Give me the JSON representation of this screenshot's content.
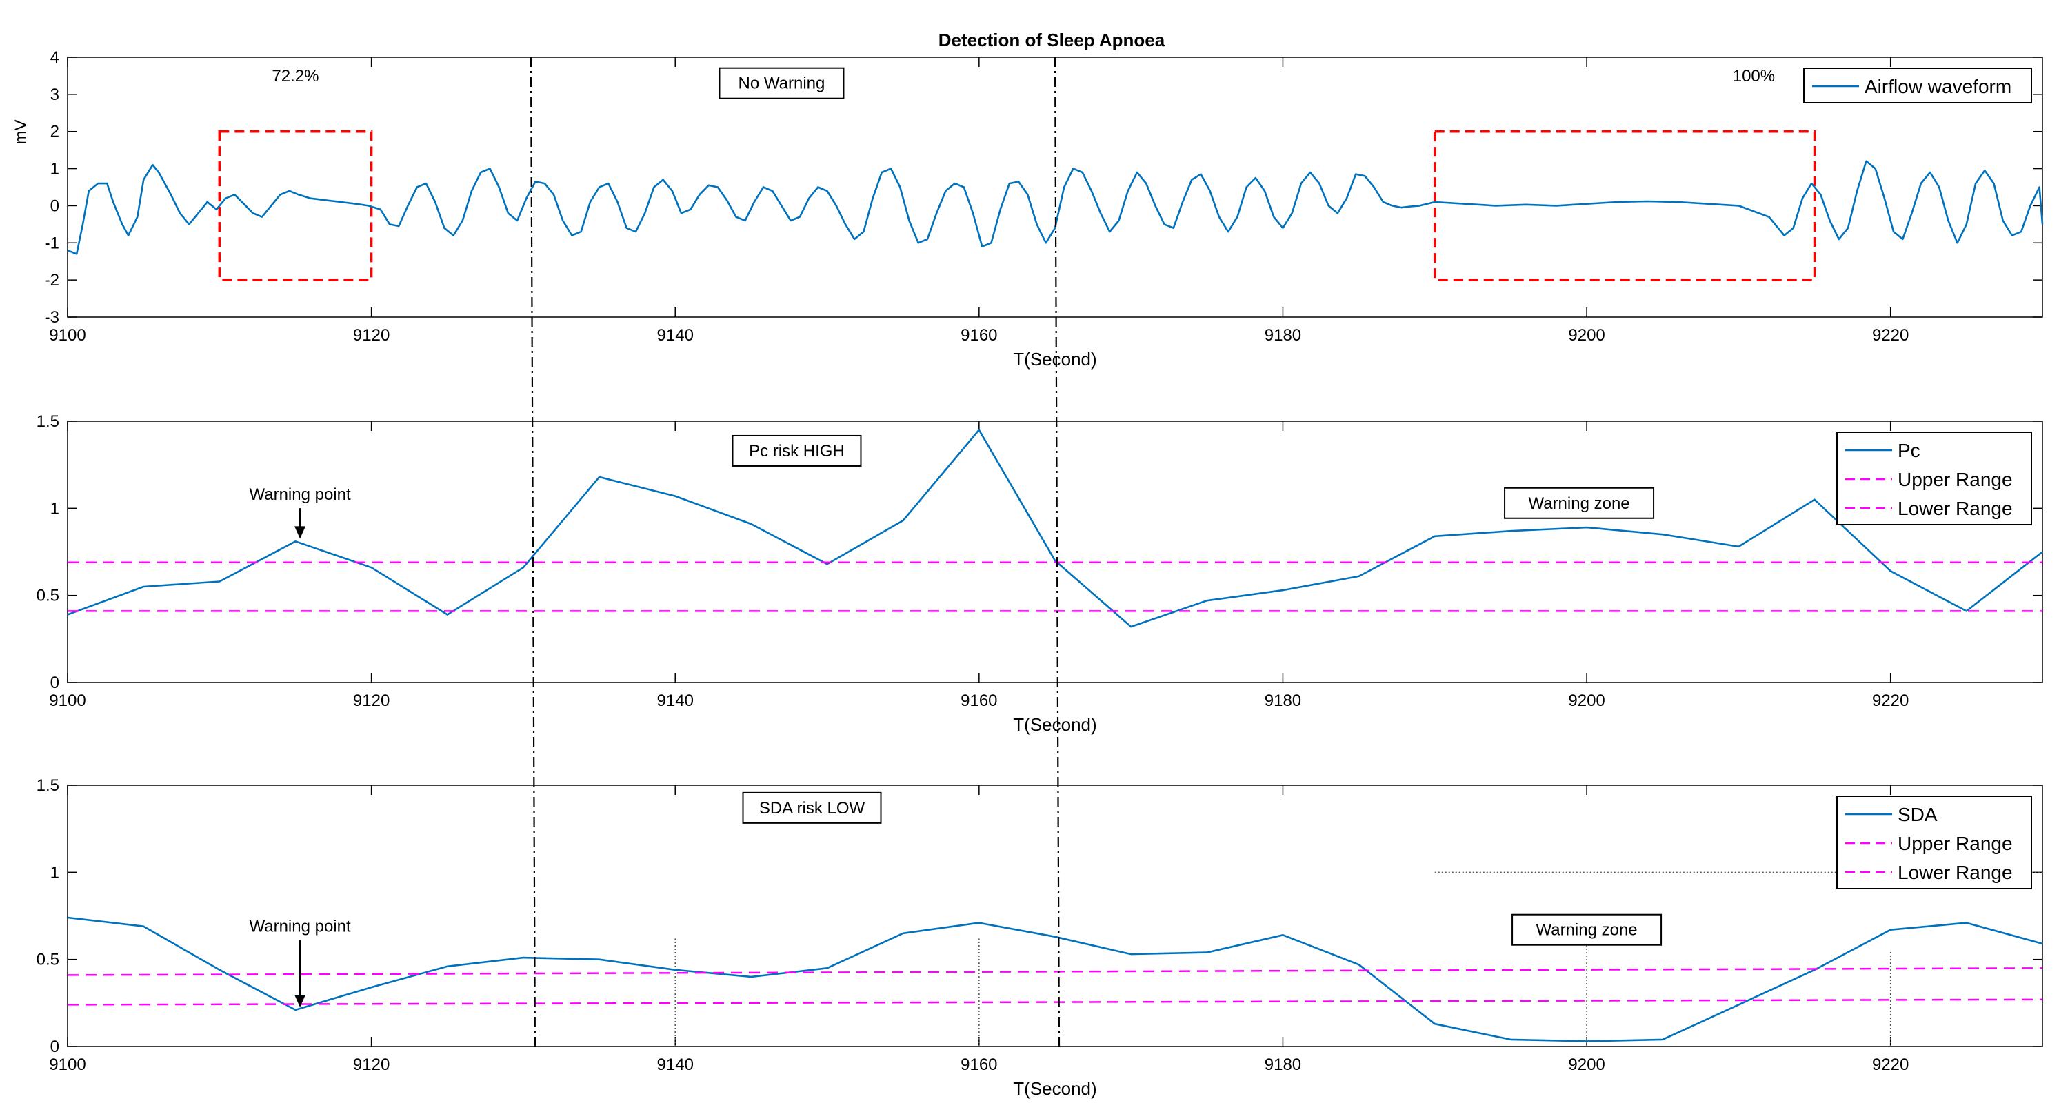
{
  "title": "Detection of Sleep Apnoea",
  "colors": {
    "signal": "#0072BD",
    "range": "#FF00FF",
    "box": "#FF0000",
    "axis": "#000000",
    "marker": "#000000"
  },
  "chart_data": [
    {
      "type": "line",
      "id": "airflow",
      "title": "Detection of Sleep Apnoea",
      "xlabel": "T(Second)",
      "ylabel": "mV",
      "xlim": [
        9100,
        9230
      ],
      "ylim": [
        -3,
        4
      ],
      "xticks": [
        9100,
        9120,
        9140,
        9160,
        9180,
        9200,
        9220
      ],
      "yticks": [
        -3,
        -2,
        -1,
        0,
        1,
        2,
        3,
        4
      ],
      "grid": false,
      "legend": {
        "position": "top-right",
        "entries": [
          "Airflow waveform"
        ]
      },
      "series": [
        {
          "name": "Airflow waveform",
          "x": [
            9100,
            9100.6,
            9101,
            9101.4,
            9102,
            9102.6,
            9103,
            9103.6,
            9104,
            9104.6,
            9105,
            9105.6,
            9106,
            9106.8,
            9107.4,
            9108,
            9108.6,
            9109.2,
            9109.8,
            9110.4,
            9111,
            9111.6,
            9112.2,
            9112.8,
            9113.4,
            9114,
            9114.6,
            9115.2,
            9116,
            9117,
            9118,
            9119,
            9119.8,
            9120.6,
            9121.2,
            9121.8,
            9122.4,
            9123,
            9123.6,
            9124.2,
            9124.8,
            9125.4,
            9126,
            9126.6,
            9127.2,
            9127.8,
            9128.4,
            9129,
            9129.6,
            9130.2,
            9130.8,
            9131.4,
            9132,
            9132.6,
            9133.2,
            9133.8,
            9134.4,
            9135,
            9135.6,
            9136.2,
            9136.8,
            9137.4,
            9138,
            9138.6,
            9139.2,
            9139.8,
            9140.4,
            9141,
            9141.6,
            9142.2,
            9142.8,
            9143.4,
            9144,
            9144.6,
            9145.2,
            9145.8,
            9146.4,
            9147,
            9147.6,
            9148.2,
            9148.8,
            9149.4,
            9150,
            9150.6,
            9151.2,
            9151.8,
            9152.4,
            9153,
            9153.6,
            9154.2,
            9154.8,
            9155.4,
            9156,
            9156.6,
            9157.2,
            9157.8,
            9158.4,
            9159,
            9159.6,
            9160.2,
            9160.8,
            9161.4,
            9162,
            9162.6,
            9163.2,
            9163.8,
            9164.4,
            9165,
            9165.6,
            9166.2,
            9166.8,
            9167.4,
            9168,
            9168.6,
            9169.2,
            9169.8,
            9170.4,
            9171,
            9171.6,
            9172.2,
            9172.8,
            9173.4,
            9174,
            9174.6,
            9175.2,
            9175.8,
            9176.4,
            9177,
            9177.6,
            9178.2,
            9178.8,
            9179.4,
            9180,
            9180.6,
            9181.2,
            9181.8,
            9182.4,
            9183,
            9183.6,
            9184.2,
            9184.8,
            9185.4,
            9186,
            9186.6,
            9187.2,
            9187.8,
            9188.4,
            9189,
            9190,
            9192,
            9194,
            9196,
            9198,
            9200,
            9202,
            9204,
            9206,
            9208,
            9210,
            9212,
            9213,
            9213.6,
            9214.2,
            9214.8,
            9215.4,
            9216,
            9216.6,
            9217.2,
            9217.8,
            9218.4,
            9219,
            9219.6,
            9220.2,
            9220.8,
            9221.4,
            9222,
            9222.6,
            9223.2,
            9223.8,
            9224.4,
            9225,
            9225.6,
            9226.2,
            9226.8,
            9227.4,
            9228,
            9228.6,
            9229.2,
            9229.8,
            9230
          ],
          "y": [
            -1.2,
            -1.3,
            -0.5,
            0.4,
            0.6,
            0.6,
            0.1,
            -0.5,
            -0.8,
            -0.3,
            0.7,
            1.1,
            0.9,
            0.3,
            -0.2,
            -0.5,
            -0.2,
            0.1,
            -0.1,
            0.2,
            0.3,
            0.05,
            -0.2,
            -0.3,
            0.0,
            0.3,
            0.4,
            0.3,
            0.2,
            0.15,
            0.1,
            0.05,
            0.0,
            -0.1,
            -0.5,
            -0.55,
            0.0,
            0.5,
            0.6,
            0.1,
            -0.6,
            -0.8,
            -0.4,
            0.4,
            0.9,
            1.0,
            0.5,
            -0.2,
            -0.4,
            0.2,
            0.65,
            0.6,
            0.3,
            -0.4,
            -0.8,
            -0.7,
            0.1,
            0.5,
            0.6,
            0.1,
            -0.6,
            -0.7,
            -0.2,
            0.5,
            0.7,
            0.4,
            -0.2,
            -0.1,
            0.3,
            0.55,
            0.5,
            0.15,
            -0.3,
            -0.4,
            0.1,
            0.5,
            0.4,
            0.0,
            -0.4,
            -0.3,
            0.2,
            0.5,
            0.4,
            0.0,
            -0.5,
            -0.9,
            -0.7,
            0.2,
            0.9,
            1.0,
            0.5,
            -0.4,
            -1.0,
            -0.9,
            -0.2,
            0.4,
            0.6,
            0.5,
            -0.2,
            -1.1,
            -1.0,
            -0.1,
            0.6,
            0.65,
            0.3,
            -0.5,
            -1.0,
            -0.6,
            0.5,
            1.0,
            0.9,
            0.4,
            -0.2,
            -0.7,
            -0.4,
            0.4,
            0.9,
            0.6,
            0.0,
            -0.5,
            -0.6,
            0.1,
            0.7,
            0.85,
            0.4,
            -0.3,
            -0.7,
            -0.3,
            0.5,
            0.75,
            0.4,
            -0.3,
            -0.6,
            -0.2,
            0.6,
            0.9,
            0.6,
            0.0,
            -0.2,
            0.2,
            0.85,
            0.8,
            0.5,
            0.1,
            0.0,
            -0.05,
            -0.02,
            0.0,
            0.1,
            0.05,
            0.0,
            0.03,
            0.0,
            0.05,
            0.1,
            0.12,
            0.1,
            0.05,
            0.0,
            -0.3,
            -0.8,
            -0.6,
            0.2,
            0.6,
            0.3,
            -0.4,
            -0.9,
            -0.6,
            0.4,
            1.2,
            1.0,
            0.2,
            -0.7,
            -0.9,
            -0.2,
            0.6,
            0.9,
            0.5,
            -0.4,
            -1.0,
            -0.5,
            0.6,
            0.95,
            0.6,
            -0.4,
            -0.8,
            -0.7,
            0.0,
            0.5,
            -0.5
          ]
        }
      ],
      "annotations": [
        {
          "text": "72.2%",
          "x": 9115,
          "y": 3.5
        },
        {
          "text": "No Warning",
          "x": 9147,
          "y": 3.3,
          "boxed": true
        },
        {
          "text": "100%",
          "x": 9211,
          "y": 3.5
        }
      ],
      "highlight_boxes": [
        {
          "x0": 9110,
          "x1": 9120,
          "y0": -2,
          "y1": 2
        },
        {
          "x0": 9190,
          "x1": 9215,
          "y0": -2,
          "y1": 2
        }
      ]
    },
    {
      "type": "line",
      "id": "pc",
      "title": "",
      "xlabel": "T(Second)",
      "ylabel": "",
      "xlim": [
        9100,
        9230
      ],
      "ylim": [
        0,
        1.5
      ],
      "xticks": [
        9100,
        9120,
        9140,
        9160,
        9180,
        9200,
        9220
      ],
      "yticks": [
        0,
        0.5,
        1,
        1.5
      ],
      "grid": false,
      "legend": {
        "position": "top-right",
        "entries": [
          "Pc",
          "Upper Range",
          "Lower Range"
        ]
      },
      "series": [
        {
          "name": "Pc",
          "x": [
            9100,
            9105,
            9110,
            9115,
            9120,
            9125,
            9130,
            9135,
            9140,
            9145,
            9150,
            9155,
            9160,
            9165,
            9170,
            9175,
            9180,
            9185,
            9190,
            9195,
            9200,
            9205,
            9210,
            9215,
            9220,
            9225,
            9230
          ],
          "y": [
            0.39,
            0.55,
            0.58,
            0.81,
            0.66,
            0.39,
            0.66,
            1.18,
            1.07,
            0.91,
            0.68,
            0.93,
            1.45,
            0.7,
            0.32,
            0.47,
            0.53,
            0.61,
            0.84,
            0.87,
            0.89,
            0.85,
            0.78,
            1.05,
            0.64,
            0.41,
            0.75
          ]
        },
        {
          "name": "Upper Range",
          "x": [
            9100,
            9230
          ],
          "y": [
            0.69,
            0.69
          ]
        },
        {
          "name": "Lower Range",
          "x": [
            9100,
            9230
          ],
          "y": [
            0.41,
            0.41
          ]
        }
      ],
      "annotations": [
        {
          "text": "Pc risk HIGH",
          "x": 9148,
          "y": 1.33,
          "boxed": true
        },
        {
          "text": "Warning point",
          "x": 9115.3,
          "y": 1.08,
          "arrow_to": [
            9115.3,
            0.81
          ]
        },
        {
          "text": "Warning zone",
          "x": 9199.5,
          "y": 1.03,
          "boxed": true
        }
      ]
    },
    {
      "type": "line",
      "id": "sda",
      "title": "",
      "xlabel": "T(Second)",
      "ylabel": "",
      "xlim": [
        9100,
        9230
      ],
      "ylim": [
        0,
        1.5
      ],
      "xticks": [
        9100,
        9120,
        9140,
        9160,
        9180,
        9200,
        9220
      ],
      "yticks": [
        0,
        0.5,
        1,
        1.5
      ],
      "grid": false,
      "legend": {
        "position": "top-right",
        "entries": [
          "SDA",
          "Upper Range",
          "Lower Range"
        ]
      },
      "series": [
        {
          "name": "SDA",
          "x": [
            9100,
            9105,
            9110,
            9115,
            9120,
            9125,
            9130,
            9135,
            9140,
            9145,
            9150,
            9155,
            9160,
            9165,
            9170,
            9175,
            9180,
            9185,
            9190,
            9195,
            9200,
            9205,
            9210,
            9215,
            9220,
            9225,
            9230
          ],
          "y": [
            0.74,
            0.69,
            0.44,
            0.21,
            0.34,
            0.46,
            0.51,
            0.5,
            0.44,
            0.4,
            0.45,
            0.65,
            0.71,
            0.63,
            0.53,
            0.54,
            0.64,
            0.47,
            0.13,
            0.04,
            0.03,
            0.04,
            0.24,
            0.44,
            0.67,
            0.71,
            0.59
          ]
        },
        {
          "name": "Upper Range",
          "x": [
            9100,
            9230
          ],
          "y": [
            0.41,
            0.45
          ]
        },
        {
          "name": "Lower Range",
          "x": [
            9100,
            9230
          ],
          "y": [
            0.24,
            0.27
          ]
        }
      ],
      "annotations": [
        {
          "text": "SDA risk LOW",
          "x": 9149,
          "y": 1.37,
          "boxed": true
        },
        {
          "text": "Warning point",
          "x": 9115.3,
          "y": 0.69,
          "arrow_to": [
            9115.3,
            0.21
          ]
        },
        {
          "text": "Warning zone",
          "x": 9200,
          "y": 0.67,
          "boxed": true
        }
      ],
      "reference_lines": [
        {
          "style": "dotted",
          "x0": 9190,
          "x1": 9230,
          "y0": 1.0,
          "y1": 1.0
        },
        {
          "style": "dotted",
          "x0": 9140,
          "x1": 9140,
          "y0": 0,
          "y1": 0.62
        },
        {
          "style": "dotted",
          "x0": 9160,
          "x1": 9160,
          "y0": 0,
          "y1": 0.62
        },
        {
          "style": "dotted",
          "x0": 9200,
          "x1": 9200,
          "y0": 0,
          "y1": 0.67
        },
        {
          "style": "dotted",
          "x0": 9220,
          "x1": 9220,
          "y0": 0,
          "y1": 0.55
        }
      ]
    }
  ],
  "dividers": [
    9130.5,
    9165
  ]
}
